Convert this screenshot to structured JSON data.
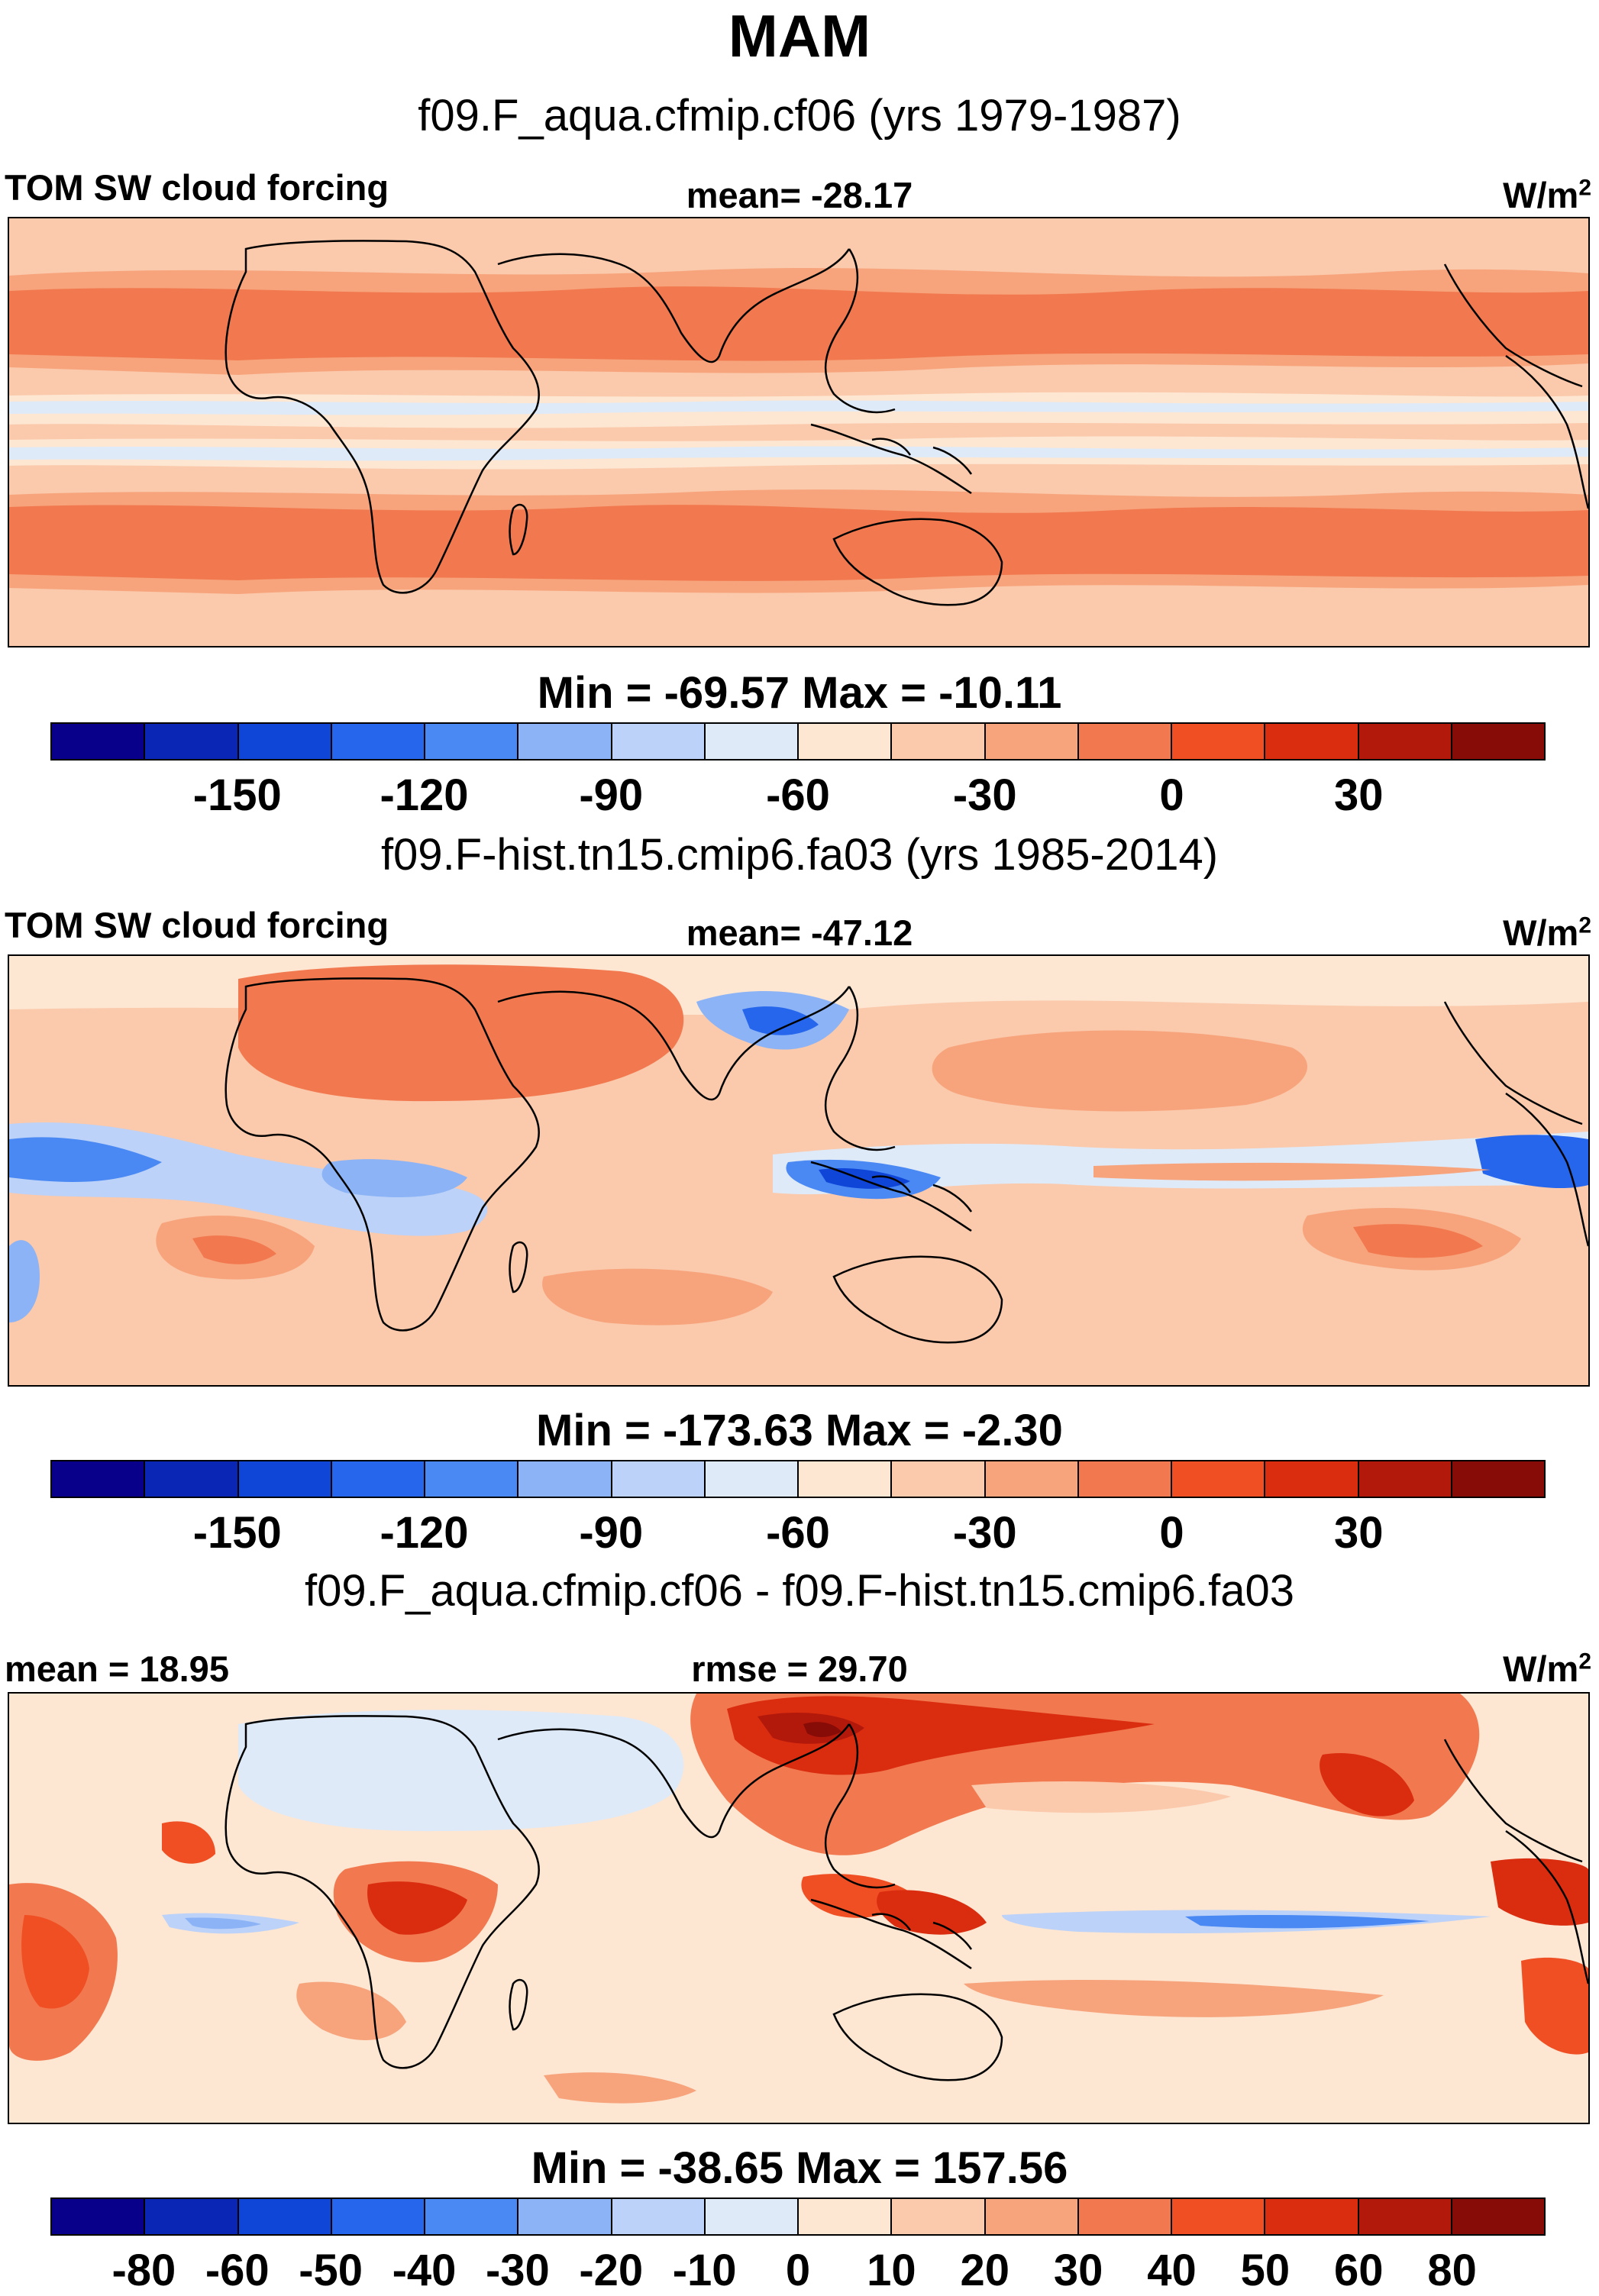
{
  "title": "MAM",
  "units_text": "W/m",
  "units_sup": "2",
  "palette": [
    "#08008a",
    "#0926b4",
    "#0f46d8",
    "#2566ec",
    "#4a89f3",
    "#8bb3f6",
    "#bcd2f8",
    "#dfeaf8",
    "#fde6d2",
    "#fbc9ab",
    "#f7a47c",
    "#f2794f",
    "#f04f24",
    "#da2d10",
    "#b3190b",
    "#870b06"
  ],
  "colorbar_ticks_main": [
    "-150",
    "-120",
    "-90",
    "-60",
    "-30",
    "0",
    "30"
  ],
  "colorbar_ticks_diff": [
    "-80",
    "-60",
    "-50",
    "-40",
    "-30",
    "-20",
    "-10",
    "0",
    "10",
    "20",
    "30",
    "40",
    "50",
    "60",
    "80"
  ],
  "panels": [
    {
      "case": "f09.F_aqua.cfmip.cf06 (yrs 1979-1987)",
      "left_label": "TOM SW cloud forcing",
      "center_label": "mean= -28.17",
      "minmax": "Min = -69.57 Max = -10.11",
      "kind": "aqua"
    },
    {
      "case": "f09.F-hist.tn15.cmip6.fa03 (yrs 1985-2014)",
      "left_label": "TOM SW cloud forcing",
      "center_label": "mean= -47.12",
      "minmax": "Min = -173.63 Max =  -2.30",
      "kind": "hist"
    },
    {
      "case": "f09.F_aqua.cfmip.cf06 - f09.F-hist.tn15.cmip6.fa03",
      "left_label": "mean =  18.95",
      "center_label": "rmse =  29.70",
      "minmax": "Min = -38.65 Max = 157.56",
      "kind": "diff"
    }
  ]
}
